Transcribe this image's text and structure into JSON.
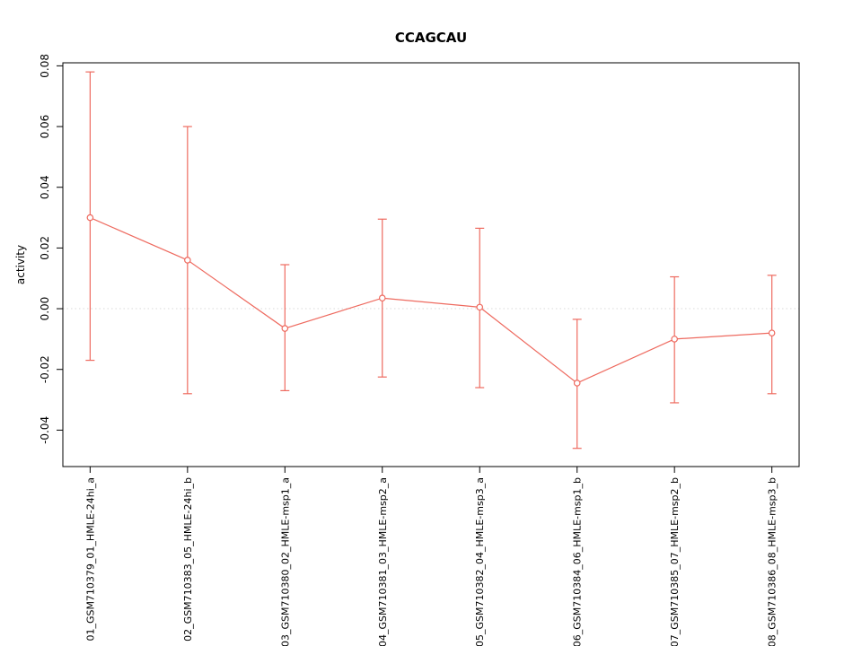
{
  "chart_data": {
    "type": "line",
    "title": "CCAGCAU",
    "ylabel": "activity",
    "xlabel": "",
    "categories": [
      "01_GSM710379_01_HMLE-24hi_a",
      "02_GSM710383_05_HMLE-24hi_b",
      "03_GSM710380_02_HMLE-msp1_a",
      "04_GSM710381_03_HMLE-msp2_a",
      "05_GSM710382_04_HMLE-msp3_a",
      "06_GSM710384_06_HMLE-msp1_b",
      "07_GSM710385_07_HMLE-msp2_b",
      "08_GSM710386_08_HMLE-msp3_b"
    ],
    "series": [
      {
        "name": "activity",
        "values": [
          0.03,
          0.016,
          -0.0065,
          0.0035,
          0.0005,
          -0.0245,
          -0.01,
          -0.008
        ],
        "error_low": [
          -0.017,
          -0.028,
          -0.027,
          -0.0225,
          -0.026,
          -0.046,
          -0.031,
          -0.028
        ],
        "error_high": [
          0.078,
          0.06,
          0.0145,
          0.0295,
          0.0265,
          -0.0035,
          0.0105,
          0.011
        ]
      }
    ],
    "ylim": [
      -0.052,
      0.081
    ],
    "xlim": [
      0.72,
      8.28
    ],
    "yticks": [
      -0.04,
      -0.02,
      0,
      0.02,
      0.04,
      0.06,
      0.08
    ],
    "zero_line_y": 0,
    "grid": false,
    "legend": "none",
    "point_style": "open-circle",
    "colors": {
      "series": "#ee6a5f",
      "zero_line": "#d8d8d8",
      "axis": "#000000",
      "background": "#ffffff"
    }
  }
}
